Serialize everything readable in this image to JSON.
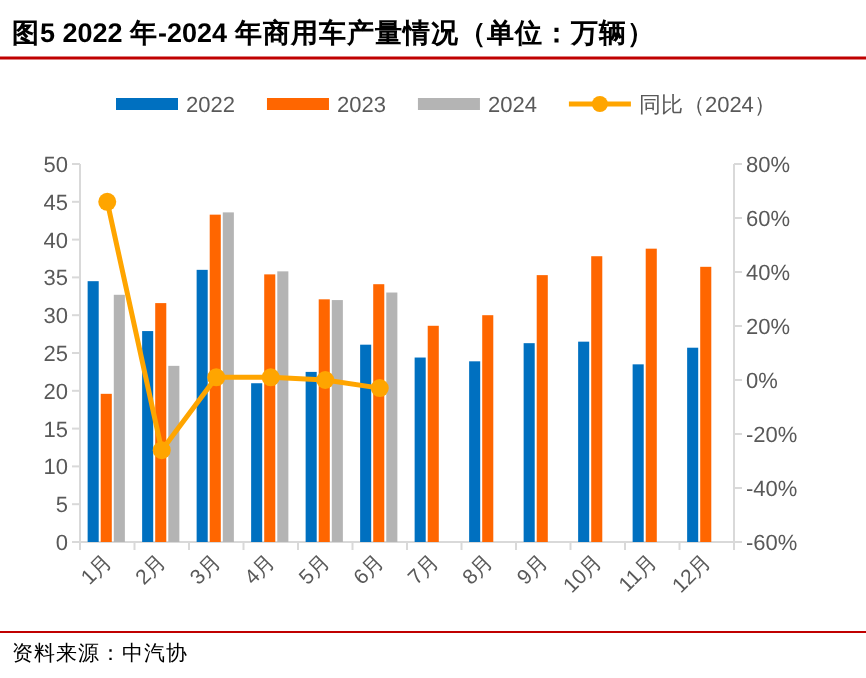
{
  "chart_data": {
    "type": "bar",
    "title": "图5  2022 年-2024 年商用车产量情况（单位：万辆）",
    "categories": [
      "1月",
      "2月",
      "3月",
      "4月",
      "5月",
      "6月",
      "7月",
      "8月",
      "9月",
      "10月",
      "11月",
      "12月"
    ],
    "series": [
      {
        "name": "2022",
        "color": "#0070c0",
        "values": [
          34.5,
          27.9,
          36.0,
          21.0,
          22.5,
          26.1,
          24.4,
          23.9,
          26.3,
          26.5,
          23.5,
          25.7
        ]
      },
      {
        "name": "2023",
        "color": "#ff6600",
        "values": [
          19.6,
          31.6,
          43.3,
          35.4,
          32.1,
          34.1,
          28.6,
          30.0,
          35.3,
          37.8,
          38.8,
          36.4
        ]
      },
      {
        "name": "2024",
        "color": "#b4b4b4",
        "values": [
          32.7,
          23.3,
          43.6,
          35.8,
          32.0,
          33.0,
          null,
          null,
          null,
          null,
          null,
          null
        ]
      },
      {
        "name": "同比（2024）",
        "type": "line",
        "axis": "y2",
        "color": "#ffa500",
        "values": [
          66,
          -26,
          1,
          1,
          0,
          -3,
          null,
          null,
          null,
          null,
          null,
          null
        ]
      }
    ],
    "ylim": [
      0,
      50
    ],
    "yticks": [
      0,
      5,
      10,
      15,
      20,
      25,
      30,
      35,
      40,
      45,
      50
    ],
    "y2lim": [
      -60,
      80
    ],
    "y2ticks": [
      {
        "value": -60,
        "label": "-60%"
      },
      {
        "value": -40,
        "label": "-40%"
      },
      {
        "value": -20,
        "label": "-20%"
      },
      {
        "value": 0,
        "label": "0%"
      },
      {
        "value": 20,
        "label": "20%"
      },
      {
        "value": 40,
        "label": "40%"
      },
      {
        "value": 60,
        "label": "60%"
      },
      {
        "value": 80,
        "label": "80%"
      }
    ],
    "marker": "circle",
    "legend": "top",
    "grid": false,
    "annotations": [
      "资料来源：中汽协"
    ]
  }
}
